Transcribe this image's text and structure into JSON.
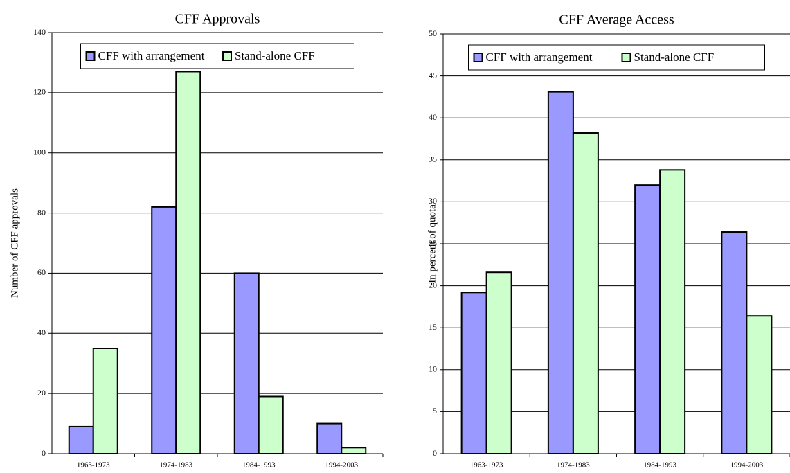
{
  "chart_data": [
    {
      "type": "bar",
      "title": "CFF Approvals",
      "y_label": "Number of CFF approvals",
      "categories": [
        "1963-1973",
        "1974-1983",
        "1984-1993",
        "1994-2003"
      ],
      "series": [
        {
          "name": "CFF with arrangement",
          "color": "#9999ff",
          "values": [
            9,
            82,
            60,
            10
          ]
        },
        {
          "name": "Stand-alone CFF",
          "color": "#ccffcc",
          "values": [
            35,
            127,
            19,
            2
          ]
        }
      ],
      "ylim": [
        0,
        140
      ],
      "yticks": [
        0,
        20,
        40,
        60,
        80,
        100,
        120,
        140
      ],
      "grid": true,
      "legend": "top"
    },
    {
      "type": "bar",
      "title": "CFF Average Access",
      "y_label": "In percent of quota",
      "categories": [
        "1963-1973",
        "1974-1983",
        "1984-1993",
        "1994-2003"
      ],
      "series": [
        {
          "name": "CFF with arrangement",
          "color": "#9999ff",
          "values": [
            19.2,
            43.1,
            32,
            26.4
          ]
        },
        {
          "name": "Stand-alone CFF",
          "color": "#ccffcc",
          "values": [
            21.6,
            38.2,
            33.8,
            16.4
          ]
        }
      ],
      "ylim": [
        0,
        50
      ],
      "yticks": [
        0,
        5,
        10,
        15,
        20,
        25,
        30,
        35,
        40,
        45,
        50
      ],
      "grid": true,
      "legend": "top"
    }
  ]
}
